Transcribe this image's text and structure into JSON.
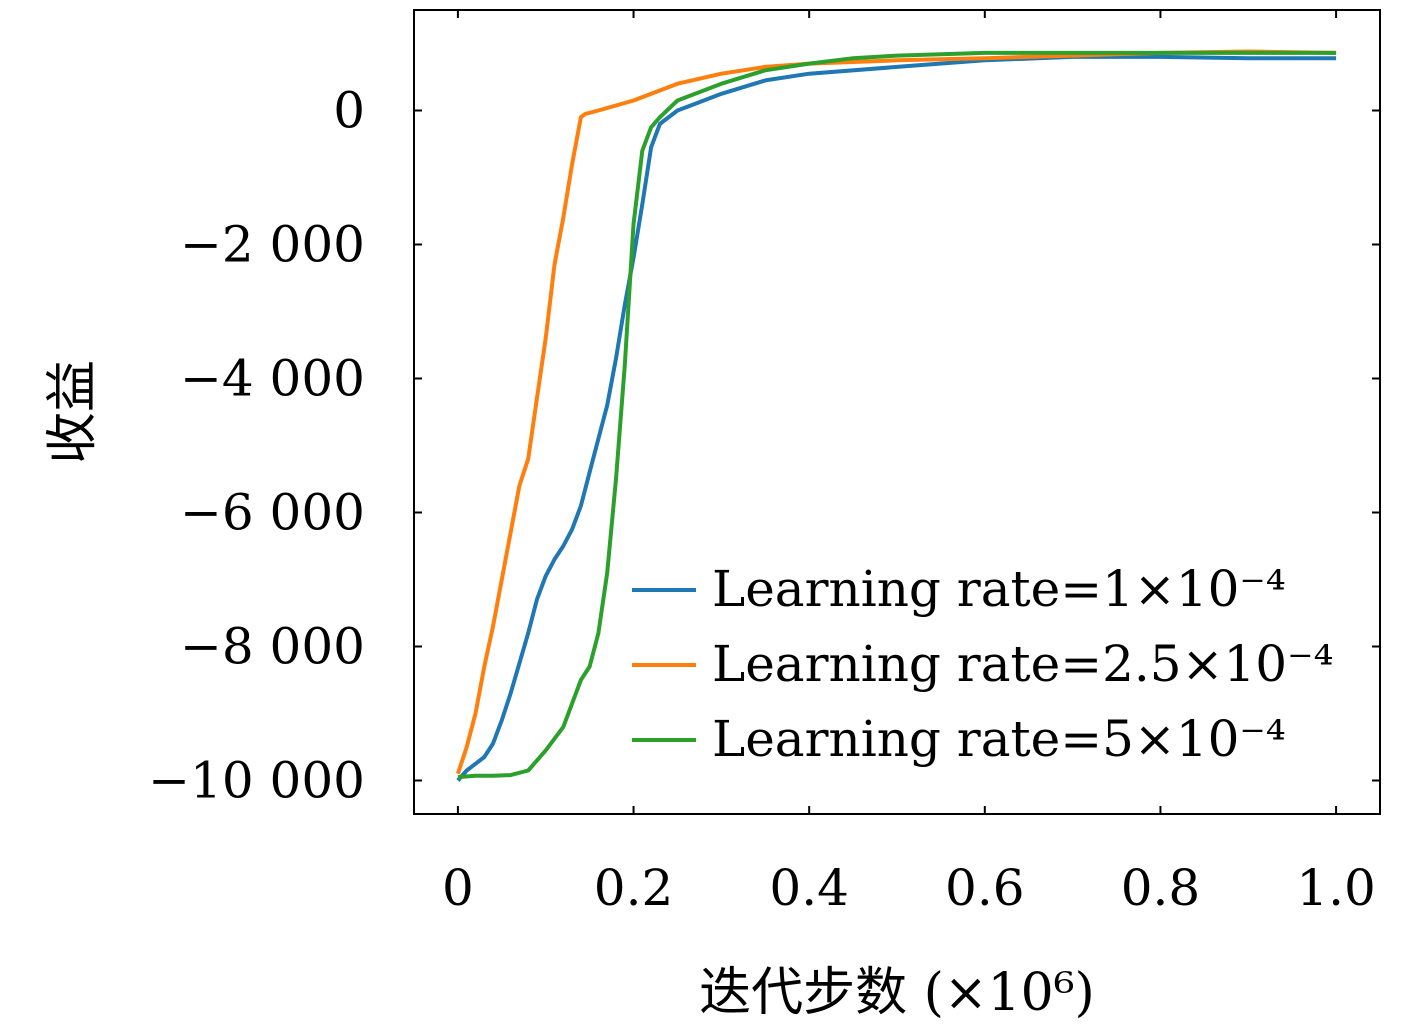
{
  "chart_data": {
    "type": "line",
    "title": "",
    "xlabel": "迭代步数 (×10⁶)",
    "ylabel": "收益",
    "xlim": [
      -0.05,
      1.05
    ],
    "ylim": [
      -10500,
      1500
    ],
    "x_ticks": [
      {
        "value": 0,
        "label": "0"
      },
      {
        "value": 0.2,
        "label": "0.2"
      },
      {
        "value": 0.4,
        "label": "0.4"
      },
      {
        "value": 0.6,
        "label": "0.6"
      },
      {
        "value": 0.8,
        "label": "0.8"
      },
      {
        "value": 1.0,
        "label": "1.0"
      }
    ],
    "y_ticks": [
      {
        "value": 0,
        "label": "0"
      },
      {
        "value": -2000,
        "label": "−2 000"
      },
      {
        "value": -4000,
        "label": "−4 000"
      },
      {
        "value": -6000,
        "label": "−6 000"
      },
      {
        "value": -8000,
        "label": "−8 000"
      },
      {
        "value": -10000,
        "label": "−10 000"
      }
    ],
    "grid": false,
    "legend_position": "lower-right",
    "series": [
      {
        "name": "Learning rate=1×10⁻⁴",
        "color": "#1f77b4",
        "x": [
          0,
          0.01,
          0.02,
          0.03,
          0.04,
          0.05,
          0.06,
          0.07,
          0.08,
          0.09,
          0.1,
          0.11,
          0.12,
          0.13,
          0.14,
          0.15,
          0.16,
          0.17,
          0.18,
          0.19,
          0.2,
          0.21,
          0.22,
          0.23,
          0.25,
          0.28,
          0.3,
          0.35,
          0.4,
          0.5,
          0.6,
          0.7,
          0.8,
          0.9,
          1.0
        ],
        "y": [
          -10000,
          -9850,
          -9750,
          -9650,
          -9450,
          -9100,
          -8700,
          -8250,
          -7800,
          -7300,
          -6950,
          -6700,
          -6500,
          -6250,
          -5900,
          -5400,
          -4900,
          -4400,
          -3700,
          -2900,
          -2200,
          -1400,
          -550,
          -200,
          0,
          150,
          250,
          450,
          550,
          650,
          750,
          800,
          800,
          780,
          780
        ]
      },
      {
        "name": "Learning rate=2.5×10⁻⁴",
        "color": "#ff7f0e",
        "x": [
          0,
          0.01,
          0.02,
          0.03,
          0.04,
          0.05,
          0.06,
          0.07,
          0.08,
          0.09,
          0.1,
          0.11,
          0.12,
          0.13,
          0.14,
          0.145,
          0.16,
          0.2,
          0.25,
          0.3,
          0.35,
          0.4,
          0.5,
          0.6,
          0.7,
          0.8,
          0.9,
          1.0
        ],
        "y": [
          -9900,
          -9500,
          -9000,
          -8300,
          -7700,
          -7000,
          -6300,
          -5600,
          -5200,
          -4300,
          -3400,
          -2300,
          -1600,
          -800,
          -100,
          -50,
          0,
          150,
          400,
          550,
          650,
          700,
          750,
          780,
          820,
          860,
          880,
          860
        ]
      },
      {
        "name": "Learning rate=5×10⁻⁴",
        "color": "#2ca02c",
        "x": [
          0,
          0.02,
          0.04,
          0.06,
          0.08,
          0.1,
          0.12,
          0.14,
          0.15,
          0.16,
          0.17,
          0.18,
          0.19,
          0.2,
          0.21,
          0.22,
          0.23,
          0.25,
          0.3,
          0.35,
          0.4,
          0.45,
          0.5,
          0.6,
          0.7,
          0.8,
          0.9,
          1.0
        ],
        "y": [
          -9950,
          -9930,
          -9930,
          -9920,
          -9850,
          -9550,
          -9200,
          -8500,
          -8300,
          -7800,
          -6900,
          -5500,
          -3800,
          -1700,
          -600,
          -250,
          -100,
          150,
          400,
          600,
          700,
          780,
          820,
          860,
          860,
          860,
          860,
          860
        ]
      }
    ]
  }
}
